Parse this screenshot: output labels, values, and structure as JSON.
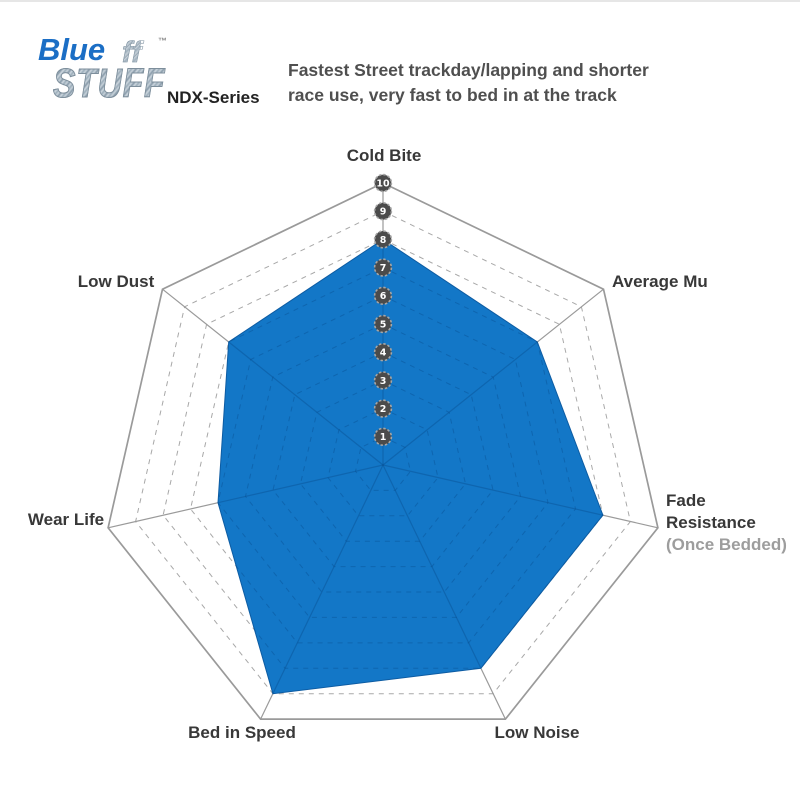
{
  "branding": {
    "logo_word_blue": "Blue",
    "logo_word_ff": "ff",
    "trademark": "™",
    "logo_word_stuff": "STUFF",
    "series_label": "NDX-Series",
    "logo_blue_color": "#1b6ec5"
  },
  "header": {
    "line1": "Fastest Street trackday/lapping and shorter",
    "line2": "race use, very fast to bed in at the track"
  },
  "labels": {
    "cold_bite": "Cold Bite",
    "average_mu": "Average Mu",
    "fade_line1": "Fade",
    "fade_line2": "Resistance",
    "fade_line3": "(Once Bedded)",
    "low_noise": "Low Noise",
    "bed_in_speed": "Bed in Speed",
    "wear_life": "Wear Life",
    "low_dust": "Low Dust"
  },
  "chart_data": {
    "type": "radar",
    "title": "Bluestuff NDX-Series brake pad performance",
    "categories": [
      "Cold Bite",
      "Average Mu",
      "Fade Resistance",
      "Low Noise",
      "Bed in Speed",
      "Wear Life",
      "Low Dust"
    ],
    "axis_note": {
      "axis": "Fade Resistance",
      "text": "(Once Bedded)"
    },
    "series": [
      {
        "name": "Bluestuff NDX-Series",
        "values": [
          8,
          7,
          8,
          8,
          9,
          6,
          7
        ]
      }
    ],
    "scale_min": 0,
    "scale_max": 10,
    "scale_ticks": [
      10,
      9,
      8,
      7,
      6,
      5,
      4,
      3,
      2,
      1
    ],
    "grid_style": "dashed concentric heptagon rings, solid outer ring and spokes",
    "legend_position": "none",
    "fill_color": "#1377c7",
    "fill_outline_color": "#0d5ca3",
    "inner_grid_color": "#084f92",
    "grid_color": "#9a9a9a",
    "ring_dash_color": "#a8a8a8",
    "badge_fill": "#4b4b4b",
    "badge_ring": "#a6a6a6",
    "badge_text_color": "#ffffff"
  }
}
